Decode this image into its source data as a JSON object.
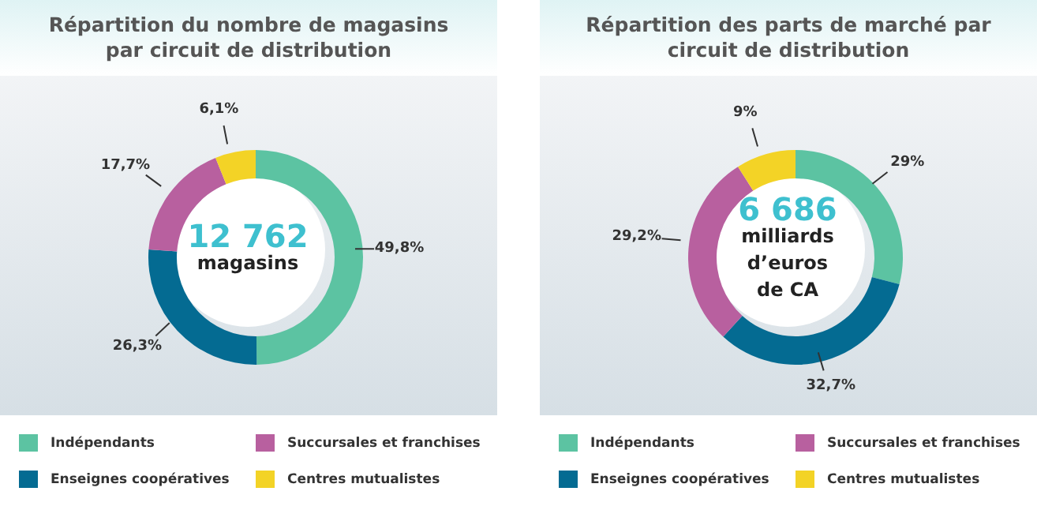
{
  "chart_data": [
    {
      "type": "donut",
      "title": "Répartition du nombre de magasins par circuit de distribution",
      "categories": [
        "Indépendants",
        "Enseignes coopératives",
        "Succursales et franchises",
        "Centres mutualistes"
      ],
      "values": [
        49.8,
        26.3,
        17.7,
        6.1
      ],
      "value_labels": [
        "49,8%",
        "26,3%",
        "17,7%",
        "6,1%"
      ],
      "colors": [
        "#5cc3a2",
        "#046b92",
        "#b8609f",
        "#f3d326"
      ],
      "annotations": [
        "12 762",
        "magasins"
      ],
      "legend": "bottom"
    },
    {
      "type": "donut",
      "title": "Répartition des parts de marché par circuit de distribution",
      "categories": [
        "Indépendants",
        "Enseignes coopératives",
        "Succursales et franchises",
        "Centres mutualistes"
      ],
      "values": [
        29,
        32.7,
        29.2,
        9
      ],
      "value_labels": [
        "29%",
        "32,7%",
        "29,2%",
        "9%"
      ],
      "colors": [
        "#5cc3a2",
        "#046b92",
        "#b8609f",
        "#f3d326"
      ],
      "annotations": [
        "6 686",
        "milliards",
        "d’euros",
        "de CA"
      ],
      "legend": "bottom"
    }
  ]
}
